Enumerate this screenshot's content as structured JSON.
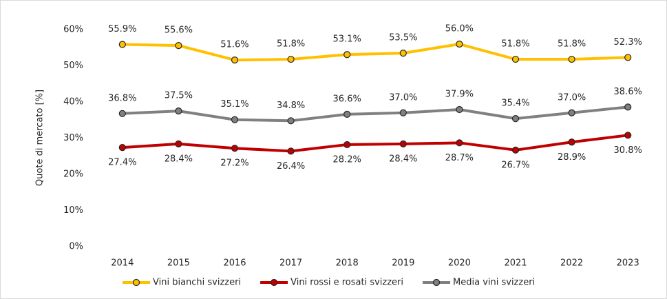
{
  "chart_data": {
    "type": "line",
    "y_label": "Quote di mercato [%]",
    "categories": [
      "2014",
      "2015",
      "2016",
      "2017",
      "2018",
      "2019",
      "2020",
      "2021",
      "2022",
      "2023"
    ],
    "series": [
      {
        "name": "Vini bianchi svizzeri",
        "color": "#FFC000",
        "values": [
          55.9,
          55.6,
          51.6,
          51.8,
          53.1,
          53.5,
          56.0,
          51.8,
          51.8,
          52.3
        ],
        "value_labels": [
          "55.9%",
          "55.6%",
          "51.6%",
          "51.8%",
          "53.1%",
          "53.5%",
          "56.0%",
          "51.8%",
          "51.8%",
          "52.3%"
        ]
      },
      {
        "name": "Vini rossi e rosati svizzeri",
        "color": "#C00000",
        "values": [
          27.4,
          28.4,
          27.2,
          26.4,
          28.2,
          28.4,
          28.7,
          26.7,
          28.9,
          30.8
        ],
        "value_labels": [
          "27.4%",
          "28.4%",
          "27.2%",
          "26.4%",
          "28.2%",
          "28.4%",
          "28.7%",
          "26.7%",
          "28.9%",
          "30.8%"
        ]
      },
      {
        "name": "Media vini svizzeri",
        "color": "#808080",
        "values": [
          36.8,
          37.5,
          35.1,
          34.8,
          36.6,
          37.0,
          37.9,
          35.4,
          37.0,
          38.6
        ],
        "value_labels": [
          "36.8%",
          "37.5%",
          "35.1%",
          "34.8%",
          "36.6%",
          "37.0%",
          "37.9%",
          "35.4%",
          "37.0%",
          "38.6%"
        ]
      }
    ],
    "ylim": [
      0,
      60
    ],
    "yticks": [
      {
        "value": 0,
        "label": "0%"
      },
      {
        "value": 10,
        "label": "10%"
      },
      {
        "value": 20,
        "label": "20%"
      },
      {
        "value": 30,
        "label": "30%"
      },
      {
        "value": 40,
        "label": "40%"
      },
      {
        "value": 50,
        "label": "50%"
      },
      {
        "value": 60,
        "label": "60%"
      }
    ],
    "grid": false,
    "legend": "bottom"
  }
}
